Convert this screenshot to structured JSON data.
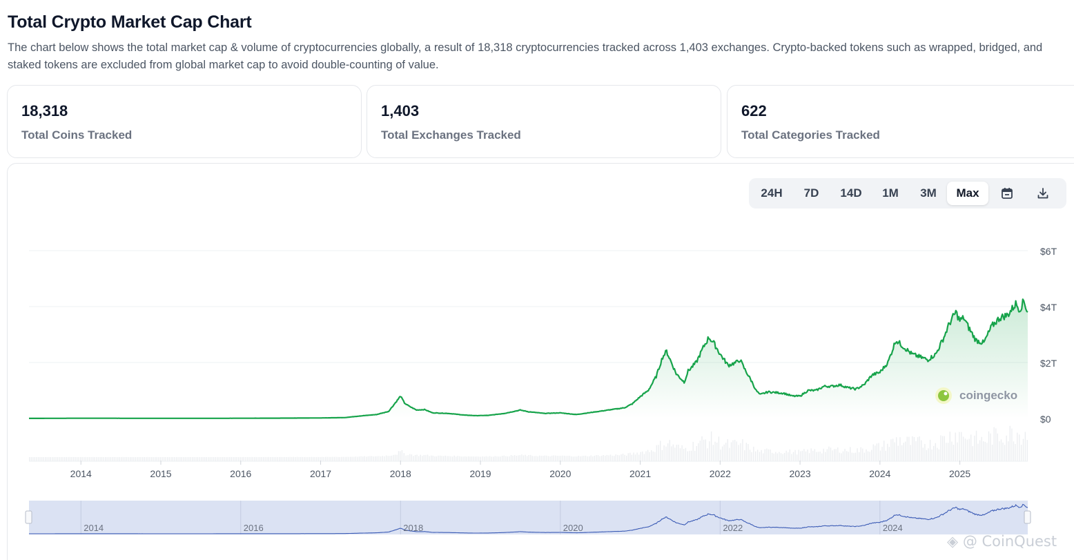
{
  "page": {
    "title": "Total Crypto Market Cap Chart",
    "description": "The chart below shows the total market cap & volume of cryptocurrencies globally, a result of 18,318 cryptocurrencies tracked across 1,403 exchanges. Crypto-backed tokens such as wrapped, bridged, and staked tokens are excluded from global market cap to avoid double-counting of value."
  },
  "stats": [
    {
      "value": "18,318",
      "label": "Total Coins Tracked"
    },
    {
      "value": "1,403",
      "label": "Total Exchanges Tracked"
    },
    {
      "value": "622",
      "label": "Total Categories Tracked"
    }
  ],
  "range_buttons": [
    {
      "label": "24H",
      "active": false
    },
    {
      "label": "7D",
      "active": false
    },
    {
      "label": "14D",
      "active": false
    },
    {
      "label": "1M",
      "active": false
    },
    {
      "label": "3M",
      "active": false
    },
    {
      "label": "Max",
      "active": true
    }
  ],
  "icons": {
    "calendar": "calendar-icon",
    "download": "download-icon"
  },
  "brand": {
    "watermark": "coingecko",
    "overlay": "@ CoinQuest"
  },
  "colors": {
    "line": "#16a34a",
    "range_fill": "#dbe2f3",
    "range_line": "#3b5bb5",
    "volume": "#e5e7eb"
  },
  "chart_data": {
    "type": "area",
    "title": "",
    "xlabel": "",
    "ylabel": "",
    "xlim": [
      2013.35,
      2025.85
    ],
    "ylim": [
      0,
      6
    ],
    "y_ticks": [
      "$0",
      "$2T",
      "$4T",
      "$6T"
    ],
    "x_ticks": [
      "2014",
      "2015",
      "2016",
      "2017",
      "2018",
      "2019",
      "2020",
      "2021",
      "2022",
      "2023",
      "2024",
      "2025"
    ],
    "navigator_ticks": [
      "2014",
      "2016",
      "2018",
      "2020",
      "2022",
      "2024"
    ],
    "series": [
      {
        "unit": "trillion USD",
        "x": [
          2013.35,
          2014.0,
          2014.5,
          2015.0,
          2015.5,
          2016.0,
          2016.5,
          2017.0,
          2017.3,
          2017.5,
          2017.7,
          2017.85,
          2017.96,
          2018.0,
          2018.05,
          2018.1,
          2018.2,
          2018.3,
          2018.4,
          2018.6,
          2018.8,
          2018.95,
          2019.1,
          2019.3,
          2019.5,
          2019.6,
          2019.8,
          2020.0,
          2020.2,
          2020.4,
          2020.6,
          2020.8,
          2020.9,
          2021.0,
          2021.1,
          2021.2,
          2021.28,
          2021.33,
          2021.45,
          2021.55,
          2021.6,
          2021.7,
          2021.8,
          2021.86,
          2021.92,
          2022.0,
          2022.1,
          2022.2,
          2022.25,
          2022.3,
          2022.4,
          2022.45,
          2022.5,
          2022.6,
          2022.8,
          2022.9,
          2023.0,
          2023.1,
          2023.2,
          2023.3,
          2023.4,
          2023.5,
          2023.6,
          2023.7,
          2023.8,
          2023.9,
          2024.0,
          2024.1,
          2024.2,
          2024.28,
          2024.4,
          2024.5,
          2024.6,
          2024.7,
          2024.8,
          2024.87,
          2024.95,
          2025.0,
          2025.05,
          2025.1,
          2025.2,
          2025.3,
          2025.4,
          2025.5,
          2025.6,
          2025.7,
          2025.75,
          2025.8,
          2025.85
        ],
        "y": [
          0.002,
          0.008,
          0.006,
          0.004,
          0.004,
          0.007,
          0.011,
          0.018,
          0.03,
          0.09,
          0.14,
          0.25,
          0.65,
          0.8,
          0.55,
          0.45,
          0.3,
          0.32,
          0.2,
          0.18,
          0.12,
          0.1,
          0.11,
          0.18,
          0.3,
          0.24,
          0.18,
          0.2,
          0.14,
          0.22,
          0.3,
          0.38,
          0.52,
          0.78,
          1.0,
          1.5,
          2.2,
          2.4,
          1.6,
          1.3,
          1.7,
          2.0,
          2.6,
          2.9,
          2.7,
          2.3,
          1.9,
          2.0,
          2.1,
          1.8,
          1.3,
          1.0,
          0.85,
          0.95,
          0.9,
          0.8,
          0.8,
          1.0,
          1.0,
          1.15,
          1.15,
          1.2,
          1.1,
          1.05,
          1.2,
          1.55,
          1.65,
          2.0,
          2.8,
          2.6,
          2.3,
          2.2,
          2.1,
          2.3,
          2.9,
          3.4,
          3.8,
          3.5,
          3.6,
          3.3,
          2.8,
          2.7,
          3.3,
          3.6,
          3.7,
          4.1,
          3.9,
          4.2,
          3.8
        ]
      }
    ]
  }
}
